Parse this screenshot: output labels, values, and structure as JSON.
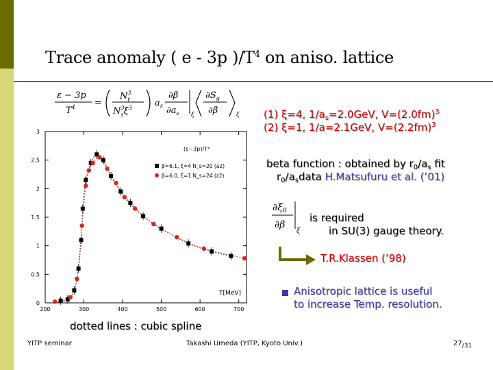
{
  "slide": {
    "title_main": "Trace anomaly ( e - 3p )/T",
    "title_sup": "4",
    "title_tail": " on aniso. lattice",
    "colors": {
      "sidebar_top": "#6b6b00",
      "sidebar_bottom": "#d7d77a",
      "red": "#cc0000",
      "blue": "#3a3aa0"
    }
  },
  "formula": {
    "lhs_num": "ε − 3p",
    "lhs_den": "T",
    "lhs_den_sup": "4",
    "equals": "=",
    "n_num": "N",
    "n_num_sub": "t",
    "n_num_sup": "3",
    "n_den": "N",
    "n_den_sub": "s",
    "n_den_sup": "3",
    "xi3": "ξ",
    "xi3_sup": "3",
    "as": "a",
    "as_sub": "s",
    "dbeta": "∂β",
    "das": "∂a",
    "das_sub": "s",
    "xi_sub": "ξ",
    "dsg": "∂S",
    "dsg_sub": "g",
    "dbeta2": "∂β",
    "xi_sub2": "ξ"
  },
  "params": {
    "line1": "(1) ξ=4, 1/a",
    "line1_sub": "s",
    "line1_b": "=2.0GeV, V=(2.0fm)",
    "line1_sup": "3",
    "line2": "(2) ξ=1, 1/a=2.1GeV, V=(2.2fm)",
    "line2_sup": "3"
  },
  "beta": {
    "line1_a": "beta function : obtained by r",
    "line1_sub1": "0",
    "line1_b": "/a",
    "line1_sub2": "s",
    "line1_c": " fit",
    "line2_a": "r",
    "line2_sub1": "0",
    "line2_b": "/a",
    "line2_sub2": "s",
    "line2_c": "data ",
    "line2_ref": "H.Matsufuru et al. (’01)"
  },
  "xi_formula": {
    "num": "∂ξ",
    "num_sub": "0",
    "den": "∂β",
    "sub": "ξ"
  },
  "required": {
    "line1": "is required",
    "line2": "in SU(3) gauge theory."
  },
  "klassen": "T.R.Klassen (’98)",
  "aniso": {
    "line1": "Anisotropic lattice is useful",
    "line2": "to increase Temp. resolution."
  },
  "dotted_note": "dotted lines : cubic spline",
  "footer": {
    "left": "YITP seminar",
    "center": "Takashi Umeda (YITP, Kyoto Univ.)",
    "page": "27",
    "total": "/31"
  },
  "chart_data": {
    "type": "scatter",
    "ylabel": "(ε−3p)/T⁴",
    "xlabel": "T[MeV]",
    "xlim": [
      200,
      720
    ],
    "ylim": [
      0,
      3
    ],
    "x_ticks": [
      200,
      300,
      400,
      500,
      600,
      700
    ],
    "y_ticks": [
      0,
      0.5,
      1,
      1.5,
      2,
      2.5,
      3
    ],
    "y_tick_labels": [
      "0",
      "0.5",
      "1",
      "1.5",
      "2",
      "2.5",
      "3"
    ],
    "legend_placement": "top-right",
    "series": [
      {
        "name": "β=6.1, ξ=4  N_s=20 (a2)",
        "color": "#000000",
        "marker": "square",
        "points": [
          [
            240,
            0.04
          ],
          [
            258,
            0.06
          ],
          [
            275,
            0.22
          ],
          [
            286,
            0.6
          ],
          [
            293,
            1.1
          ],
          [
            297,
            1.65
          ],
          [
            305,
            2.15
          ],
          [
            318,
            2.45
          ],
          [
            333,
            2.6
          ],
          [
            350,
            2.5
          ],
          [
            370,
            2.22
          ],
          [
            395,
            1.95
          ],
          [
            420,
            1.75
          ],
          [
            453,
            1.52
          ],
          [
            500,
            1.3
          ],
          [
            570,
            1.04
          ],
          [
            630,
            0.9
          ],
          [
            680,
            0.82
          ]
        ]
      },
      {
        "name": "β=6.0, ξ=1  N_s=24 (z2)",
        "color": "#dd2222",
        "marker": "circle",
        "points": [
          [
            225,
            0.02
          ],
          [
            265,
            0.1
          ],
          [
            282,
            0.42
          ],
          [
            295,
            1.35
          ],
          [
            305,
            2.05
          ],
          [
            313,
            2.32
          ],
          [
            323,
            2.45
          ],
          [
            340,
            2.55
          ],
          [
            360,
            2.35
          ],
          [
            383,
            2.1
          ],
          [
            405,
            1.85
          ],
          [
            432,
            1.65
          ],
          [
            480,
            1.38
          ],
          [
            540,
            1.15
          ],
          [
            610,
            0.95
          ],
          [
            715,
            0.78
          ]
        ]
      }
    ]
  }
}
